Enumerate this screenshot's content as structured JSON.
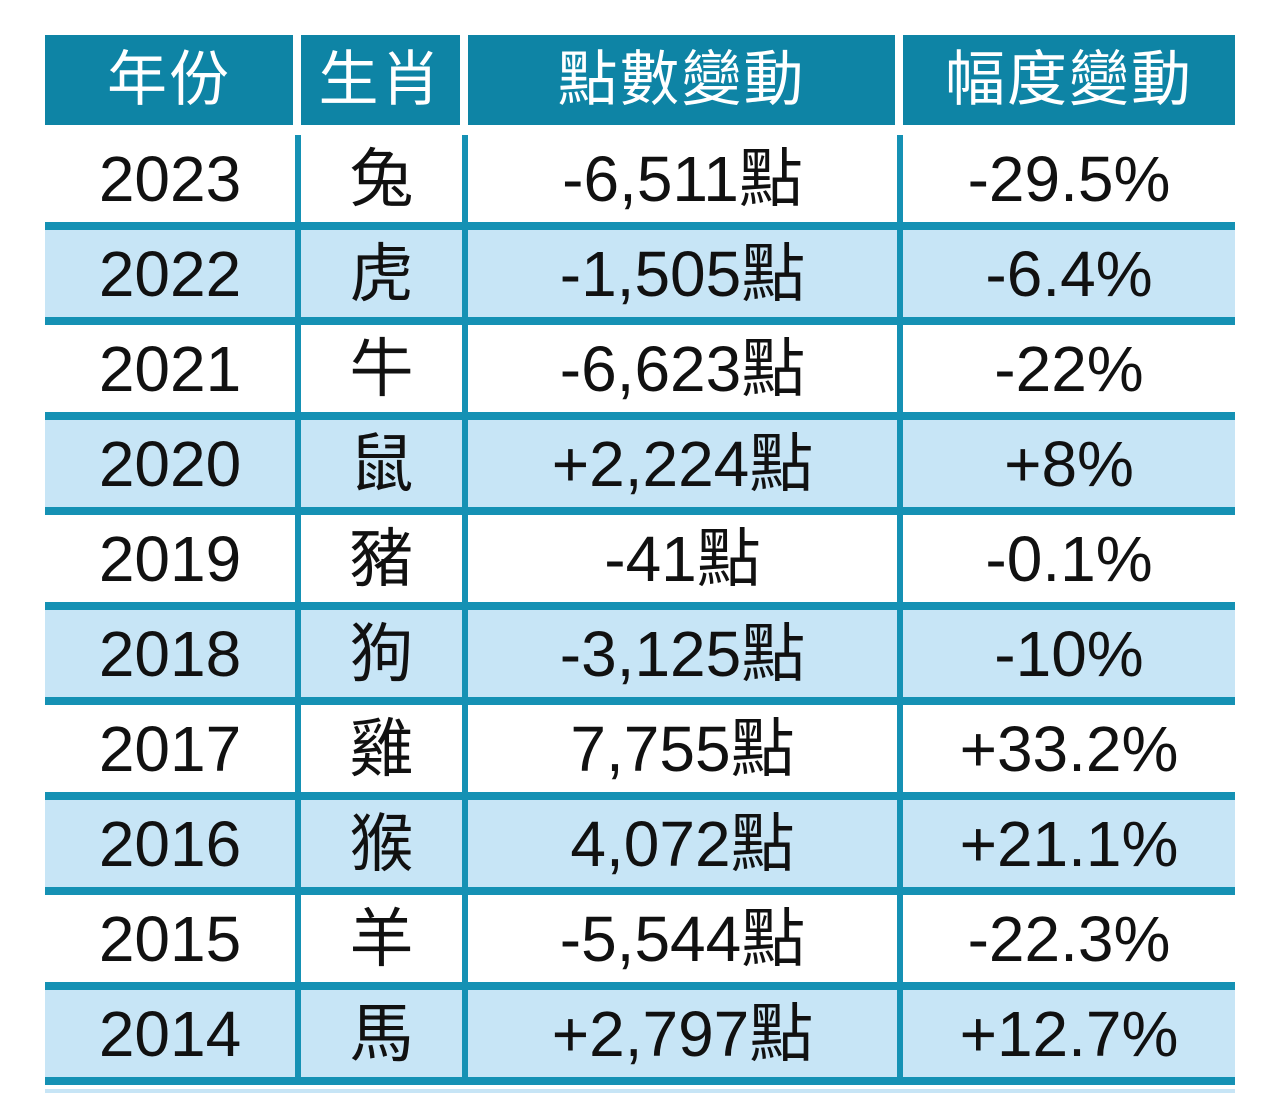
{
  "colors": {
    "header_bg": "#0E84A5",
    "header_text": "#FFFFFF",
    "grid_line": "#1591B4",
    "row_bg": "#FFFFFF",
    "row_alt_bg": "#C7E5F6",
    "body_text": "#111111"
  },
  "table": {
    "headers": [
      "年份",
      "生肖",
      "點數變動",
      "幅度變動"
    ],
    "rows": [
      {
        "year": "2023",
        "zodiac": "兔",
        "points": "-6,511點",
        "percent": "-29.5%"
      },
      {
        "year": "2022",
        "zodiac": "虎",
        "points": "-1,505點",
        "percent": "-6.4%"
      },
      {
        "year": "2021",
        "zodiac": "牛",
        "points": "-6,623點",
        "percent": "-22%"
      },
      {
        "year": "2020",
        "zodiac": "鼠",
        "points": "+2,224點",
        "percent": "+8%"
      },
      {
        "year": "2019",
        "zodiac": "豬",
        "points": "-41點",
        "percent": "-0.1%"
      },
      {
        "year": "2018",
        "zodiac": "狗",
        "points": "-3,125點",
        "percent": "-10%"
      },
      {
        "year": "2017",
        "zodiac": "雞",
        "points": "7,755點",
        "percent": "+33.2%"
      },
      {
        "year": "2016",
        "zodiac": "猴",
        "points": "4,072點",
        "percent": "+21.1%"
      },
      {
        "year": "2015",
        "zodiac": "羊",
        "points": "-5,544點",
        "percent": "-22.3%"
      },
      {
        "year": "2014",
        "zodiac": "馬",
        "points": "+2,797點",
        "percent": "+12.7%"
      }
    ]
  },
  "chart_data": {
    "type": "table",
    "title": "",
    "columns": [
      "年份",
      "生肖",
      "點數變動",
      "幅度變動"
    ],
    "years": [
      2023,
      2022,
      2021,
      2020,
      2019,
      2018,
      2017,
      2016,
      2015,
      2014
    ],
    "zodiacs": [
      "兔",
      "虎",
      "牛",
      "鼠",
      "豬",
      "狗",
      "雞",
      "猴",
      "羊",
      "馬"
    ],
    "point_changes": [
      -6511,
      -1505,
      -6623,
      2224,
      -41,
      -3125,
      7755,
      4072,
      -5544,
      2797
    ],
    "percent_changes": [
      -29.5,
      -6.4,
      -22,
      8,
      -0.1,
      -10,
      33.2,
      21.1,
      -22.3,
      12.7
    ],
    "rows": [
      [
        "2023",
        "兔",
        "-6,511點",
        "-29.5%"
      ],
      [
        "2022",
        "虎",
        "-1,505點",
        "-6.4%"
      ],
      [
        "2021",
        "牛",
        "-6,623點",
        "-22%"
      ],
      [
        "2020",
        "鼠",
        "+2,224點",
        "+8%"
      ],
      [
        "2019",
        "豬",
        "-41點",
        "-0.1%"
      ],
      [
        "2018",
        "狗",
        "-3,125點",
        "-10%"
      ],
      [
        "2017",
        "雞",
        "7,755點",
        "+33.2%"
      ],
      [
        "2016",
        "猴",
        "4,072點",
        "+21.1%"
      ],
      [
        "2015",
        "羊",
        "-5,544點",
        "-22.3%"
      ],
      [
        "2014",
        "馬",
        "+2,797點",
        "+12.7%"
      ]
    ]
  }
}
